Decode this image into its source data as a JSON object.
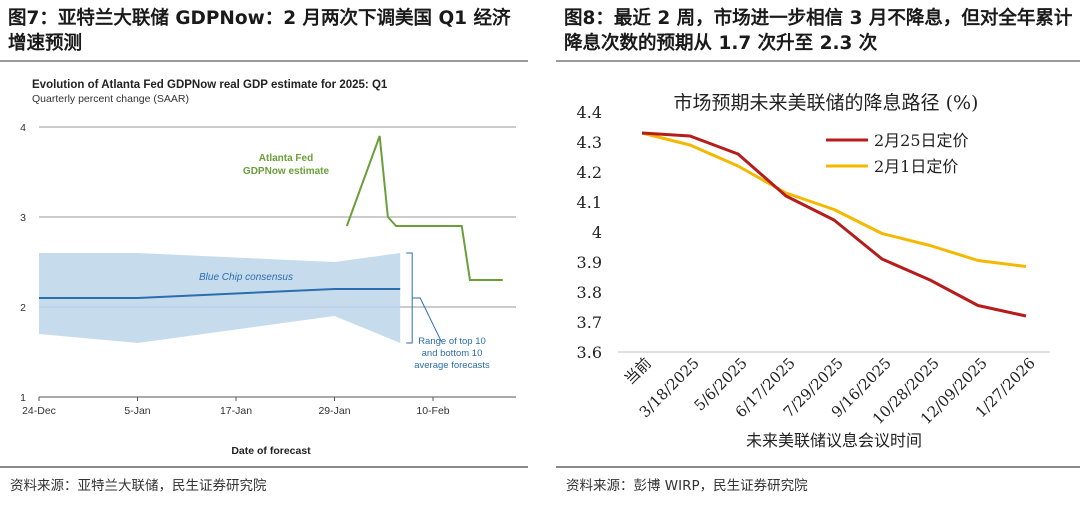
{
  "left": {
    "figure_title": "图7：亚特兰大联储 GDPNow：2 月两次下调美国 Q1 经济增速预测",
    "source": "资料来源：亚特兰大联储，民生证券研究院",
    "chart_data": {
      "type": "line",
      "title": "Evolution of Atlanta Fed GDPNow real GDP estimate for 2025: Q1",
      "subtitle": "Quarterly percent change (SAAR)",
      "xlabel": "Date of forecast",
      "ylabel": "",
      "ylim": [
        1,
        4
      ],
      "yticks": [
        "1",
        "2",
        "3",
        "4"
      ],
      "xticks": [
        {
          "day": 0,
          "label": "24-Dec"
        },
        {
          "day": 12,
          "label": "5-Jan"
        },
        {
          "day": 24,
          "label": "17-Jan"
        },
        {
          "day": 36,
          "label": "29-Jan"
        },
        {
          "day": 48,
          "label": "10-Feb"
        }
      ],
      "grid": true,
      "series": [
        {
          "name": "Atlanta Fed GDPNow estimate",
          "label_lines": [
            "Atlanta Fed",
            "GDPNow estimate"
          ],
          "color": "#6a9f3a",
          "points": [
            [
              37.5,
              2.9
            ],
            [
              41.5,
              3.9
            ],
            [
              42.5,
              3.0
            ],
            [
              43.5,
              2.9
            ],
            [
              51.5,
              2.9
            ],
            [
              52.5,
              2.3
            ],
            [
              56.5,
              2.3
            ]
          ]
        },
        {
          "name": "Blue Chip consensus",
          "color": "#2c6db0",
          "points": [
            [
              0,
              2.1
            ],
            [
              12,
              2.1
            ],
            [
              24,
              2.15
            ],
            [
              36,
              2.2
            ],
            [
              44,
              2.2
            ]
          ]
        }
      ],
      "band": {
        "label_lines": [
          "Range of top 10",
          "and bottom 10",
          "average forecasts"
        ],
        "color": "#bcd6ea",
        "upper": [
          [
            0,
            2.6
          ],
          [
            12,
            2.6
          ],
          [
            24,
            2.55
          ],
          [
            36,
            2.5
          ],
          [
            44,
            2.6
          ]
        ],
        "lower": [
          [
            0,
            1.7
          ],
          [
            12,
            1.6
          ],
          [
            24,
            1.75
          ],
          [
            36,
            1.9
          ],
          [
            44,
            1.6
          ]
        ]
      }
    }
  },
  "right": {
    "figure_title": "图8：最近 2 周，市场进一步相信 3 月不降息，但对全年累计降息次数的预期从 1.7 次升至 2.3 次",
    "source": "资料来源：彭博 WIRP，民生证券研究院",
    "chart_data": {
      "type": "line",
      "title": "市场预期未来美联储的降息路径 (%)",
      "xlabel": "未来美联储议息会议时间",
      "ylabel": "",
      "ylim": [
        3.6,
        4.4
      ],
      "yticks": [
        "3.6",
        "3.7",
        "3.8",
        "3.9",
        "4",
        "4.1",
        "4.2",
        "4.3",
        "4.4"
      ],
      "categories": [
        "当前",
        "3/18/2025",
        "5/6/2025",
        "6/17/2025",
        "7/29/2025",
        "9/16/2025",
        "10/28/2025",
        "12/09/2025",
        "1/27/2026"
      ],
      "legend_position": "top-right",
      "grid": false,
      "series": [
        {
          "name": "2月25日定价",
          "color": "#b71c1c",
          "values": [
            4.33,
            4.32,
            4.26,
            4.12,
            4.04,
            3.91,
            3.84,
            3.755,
            3.72
          ]
        },
        {
          "name": "2月1日定价",
          "color": "#f5b800",
          "values": [
            4.33,
            4.29,
            4.22,
            4.13,
            4.075,
            3.995,
            3.955,
            3.905,
            3.885
          ]
        }
      ]
    }
  }
}
